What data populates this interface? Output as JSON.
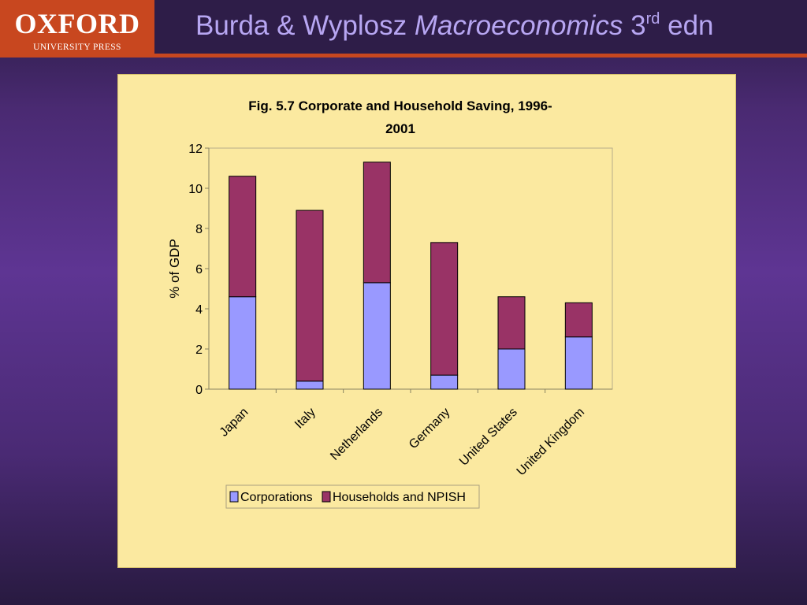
{
  "header": {
    "logo_word": "OXFORD",
    "logo_sub": "UNIVERSITY PRESS",
    "title_a": "Burda & Wyplosz ",
    "title_b": "Macroeconomics",
    "title_c": " 3",
    "title_sup": "rd",
    "title_d": " edn"
  },
  "colors": {
    "corporations": "#9999ff",
    "households": "#993366",
    "panel_bg": "#fbe9a0",
    "logo_bg": "#c8471f"
  },
  "chart_data": {
    "type": "bar",
    "stacked": true,
    "title_lines": [
      "Fig. 5.7 Corporate and Household Saving, 1996-",
      "2001"
    ],
    "xlabel": "",
    "ylabel": "% of GDP",
    "ylim": [
      0,
      12
    ],
    "yticks": [
      "0",
      "2",
      "4",
      "6",
      "8",
      "10",
      "12"
    ],
    "categories": [
      "Japan",
      "Italy",
      "Netherlands",
      "Germany",
      "United States",
      "United Kingdom"
    ],
    "series": [
      {
        "name": "Corporations",
        "color": "#9999ff",
        "values": [
          4.6,
          0.4,
          5.3,
          0.7,
          2.0,
          2.6
        ]
      },
      {
        "name": "Households and NPISH",
        "color": "#993366",
        "values": [
          6.0,
          8.5,
          6.0,
          6.6,
          2.6,
          1.7
        ]
      }
    ],
    "grid": false,
    "legend": "bottom"
  }
}
